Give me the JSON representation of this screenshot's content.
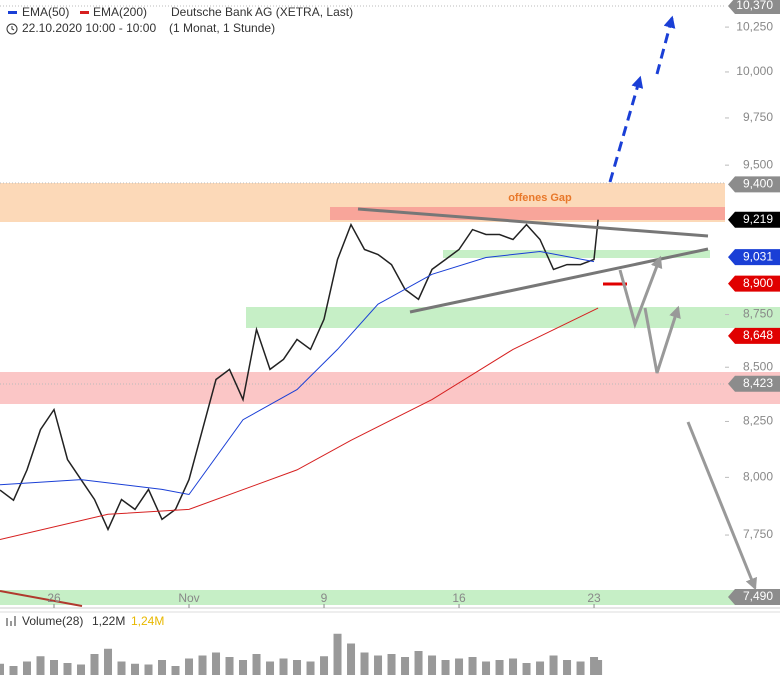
{
  "chart_data": {
    "type": "line",
    "title": "Deutsche Bank AG (XETRA, Last)",
    "subtitle": "22.10.2020 10:00 - 10:00",
    "period": "(1 Monat, 1 Stunde)",
    "annotation": "offenes Gap",
    "log_scale": true,
    "grid": false,
    "xlim": [
      0,
      26.85
    ],
    "xticks": [
      {
        "value": 2,
        "label": "26"
      },
      {
        "value": 7,
        "label": "Nov"
      },
      {
        "value": 12,
        "label": "9"
      },
      {
        "value": 17,
        "label": "16"
      },
      {
        "value": 22,
        "label": "23"
      }
    ],
    "ylim": [
      7445,
      10404
    ],
    "yticks": [
      {
        "value": 7750,
        "label": "7,750"
      },
      {
        "value": 8000,
        "label": "8,000"
      },
      {
        "value": 8250,
        "label": "8,250"
      },
      {
        "value": 8500,
        "label": "8,500"
      },
      {
        "value": 8750,
        "label": "8,750"
      },
      {
        "value": 9500,
        "label": "9,500"
      },
      {
        "value": 9750,
        "label": "9,750"
      },
      {
        "value": 10000,
        "label": "10,000"
      },
      {
        "value": 10250,
        "label": "10,250"
      }
    ],
    "x": [
      0,
      0.5,
      1,
      1.5,
      2,
      2.5,
      3,
      3.5,
      4,
      4.5,
      5,
      5.5,
      6,
      6.5,
      7,
      7.5,
      8,
      8.5,
      9,
      9.5,
      10,
      10.5,
      11,
      11.5,
      12,
      12.5,
      13,
      13.5,
      14,
      14.5,
      15,
      15.5,
      16,
      16.5,
      17,
      17.5,
      18,
      18.5,
      19,
      19.5,
      20,
      20.5,
      21,
      21.5,
      22,
      22.15
    ],
    "series": [
      {
        "name": "Deutsche Bank AG",
        "color": "#222222",
        "values": [
          7944,
          7900,
          8033,
          8213,
          8304,
          8079,
          7990,
          7903,
          7774,
          7903,
          7860,
          7947,
          7817,
          7860,
          7990,
          8213,
          8443,
          8490,
          8350,
          8679,
          8490,
          8537,
          8631,
          8584,
          8727,
          9019,
          9194,
          9069,
          9044,
          8994,
          8872,
          8824,
          8970,
          9019,
          9069,
          9169,
          9144,
          9144,
          9119,
          9194,
          9119,
          8970,
          8994,
          8994,
          9019,
          9219
        ]
      },
      {
        "name": "EMA(50)",
        "color": "#1a3fd6",
        "x": [
          0,
          3,
          6,
          7,
          9,
          11,
          12.5,
          14,
          16,
          18,
          20,
          22
        ],
        "values": [
          7968,
          7990,
          7947,
          7925,
          8258,
          8396,
          8584,
          8800,
          8946,
          9029,
          9059,
          9009
        ]
      },
      {
        "name": "EMA(200)",
        "color": "#d62020",
        "x": [
          0,
          4,
          7,
          11,
          13,
          16,
          19,
          22.15
        ],
        "values": [
          7731,
          7839,
          7860,
          8033,
          8165,
          8350,
          8584,
          8781
        ]
      }
    ],
    "price_labels": [
      {
        "value": 10370,
        "label": "10,370",
        "color": "#8c8c8c"
      },
      {
        "value": 9400,
        "label": "9,400",
        "color": "#8c8c8c"
      },
      {
        "value": 9219,
        "label": "9,219",
        "color": "#000000"
      },
      {
        "value": 9031,
        "label": "9,031",
        "color": "#1a3fd6"
      },
      {
        "value": 8900,
        "label": "8,900",
        "color": "#e00000"
      },
      {
        "value": 8648,
        "label": "8,648",
        "color": "#e00000"
      },
      {
        "value": 8423,
        "label": "8,423",
        "color": "#8c8c8c"
      },
      {
        "value": 7490,
        "label": "7,490",
        "color": "#8c8c8c"
      }
    ],
    "volume": {
      "name": "Volume(28)",
      "current": "1,22M",
      "average": "1,24M",
      "color": "#999999",
      "ylim": [
        0,
        6
      ],
      "values": [
        1.5,
        1.2,
        1.8,
        2.5,
        2.0,
        1.6,
        1.4,
        2.8,
        3.5,
        1.8,
        1.5,
        1.4,
        2.0,
        1.2,
        2.2,
        2.6,
        3.0,
        2.4,
        2.0,
        2.8,
        1.8,
        2.2,
        2.0,
        1.8,
        2.5,
        5.5,
        4.2,
        3.0,
        2.6,
        2.8,
        2.4,
        3.2,
        2.6,
        2.0,
        2.2,
        2.4,
        1.8,
        2.0,
        2.2,
        1.6,
        1.8,
        2.6,
        2.0,
        1.8,
        2.4,
        2.0
      ]
    }
  }
}
